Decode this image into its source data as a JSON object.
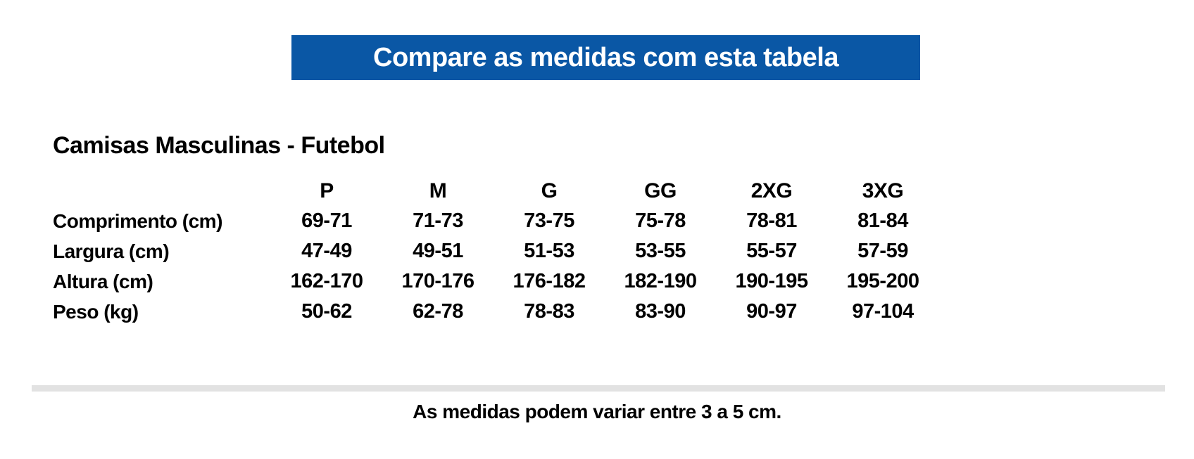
{
  "banner": {
    "label": "Compare as medidas com esta tabela",
    "bg_color": "#0a57a5",
    "text_color": "#ffffff"
  },
  "chart_data": {
    "type": "table",
    "title": "Camisas Masculinas - Futebol",
    "columns": [
      "P",
      "M",
      "G",
      "GG",
      "2XG",
      "3XG"
    ],
    "rows": [
      {
        "label": "Comprimento (cm)",
        "values": [
          "69-71",
          "71-73",
          "73-75",
          "75-78",
          "78-81",
          "81-84"
        ]
      },
      {
        "label": "Largura (cm)",
        "values": [
          "47-49",
          "49-51",
          "51-53",
          "53-55",
          "55-57",
          "57-59"
        ]
      },
      {
        "label": "Altura (cm)",
        "values": [
          "162-170",
          "170-176",
          "176-182",
          "182-190",
          "190-195",
          "195-200"
        ]
      },
      {
        "label": "Peso (kg)",
        "values": [
          "50-62",
          "62-78",
          "78-83",
          "83-90",
          "90-97",
          "97-104"
        ]
      }
    ]
  },
  "footer": {
    "note": "As medidas podem variar entre 3 a 5 cm."
  },
  "colors": {
    "text": "#000000",
    "divider": "#e2e2e2"
  }
}
